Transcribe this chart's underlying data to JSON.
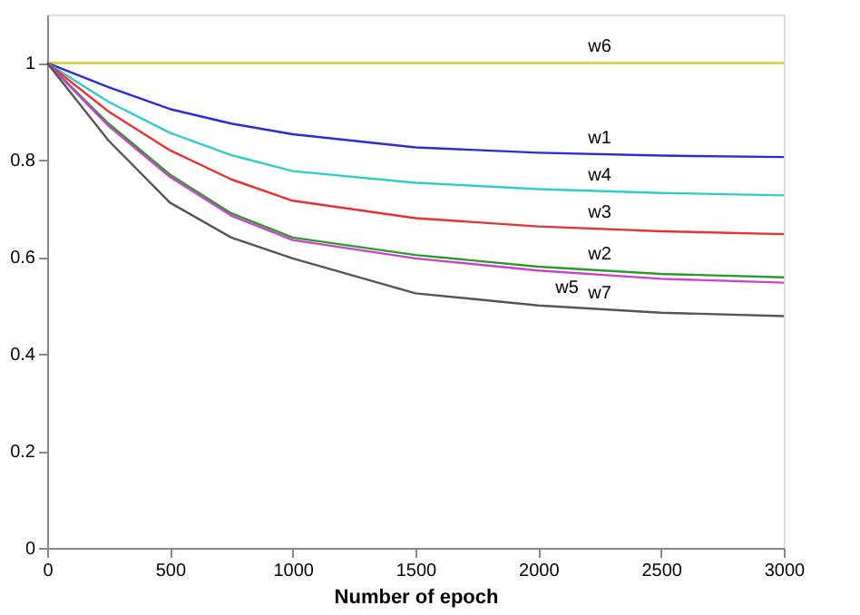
{
  "chart_data": {
    "type": "line",
    "xlabel": "Number of epoch",
    "x": [
      0,
      250,
      500,
      750,
      1000,
      1500,
      2000,
      2500,
      3000
    ],
    "xlim": [
      0,
      3000
    ],
    "xticks": [
      0,
      500,
      1000,
      1500,
      2000,
      2500,
      3000
    ],
    "ylim": [
      0,
      1.1
    ],
    "yticks": [
      0,
      0.2,
      0.4,
      0.6,
      0.8,
      1
    ],
    "grid": false,
    "legend": false,
    "marker": "none",
    "line_style": "solid",
    "series": [
      {
        "name": "w6",
        "color": "#d4cc2a",
        "values": [
          1,
          1,
          1,
          1,
          1,
          1,
          1,
          1,
          1
        ]
      },
      {
        "name": "w1",
        "color": "#2b2bd8",
        "values": [
          1,
          0.95,
          0.905,
          0.875,
          0.853,
          0.826,
          0.815,
          0.809,
          0.806
        ]
      },
      {
        "name": "w4",
        "color": "#30cccc",
        "values": [
          1,
          0.92,
          0.856,
          0.81,
          0.777,
          0.753,
          0.74,
          0.732,
          0.727
        ]
      },
      {
        "name": "w3",
        "color": "#e83030",
        "values": [
          1,
          0.9,
          0.82,
          0.76,
          0.716,
          0.68,
          0.663,
          0.653,
          0.647
        ]
      },
      {
        "name": "w2",
        "color": "#2a9a2a",
        "values": [
          1,
          0.875,
          0.77,
          0.69,
          0.64,
          0.604,
          0.58,
          0.565,
          0.558
        ]
      },
      {
        "name": "w5",
        "color": "#cc40cc",
        "values": [
          1,
          0.87,
          0.765,
          0.685,
          0.635,
          0.597,
          0.572,
          0.555,
          0.547
        ]
      },
      {
        "name": "w7",
        "color": "#555555",
        "values": [
          1,
          0.84,
          0.712,
          0.64,
          0.597,
          0.525,
          0.5,
          0.485,
          0.478
        ]
      }
    ]
  }
}
